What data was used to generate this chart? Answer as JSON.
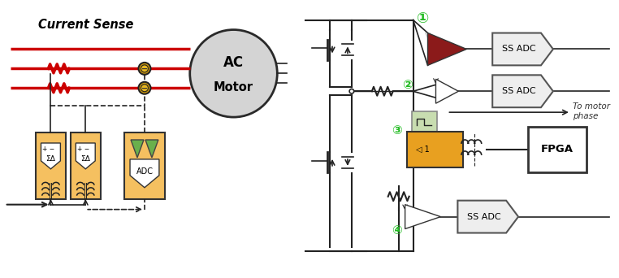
{
  "bg_color": "#ffffff",
  "title_left": "Current Sense",
  "wire_color": "#cc0000",
  "line_color": "#222222",
  "green_color": "#22bb22",
  "dark_red": "#8b1a1a",
  "orange_fill": "#e8a020",
  "light_green_fill": "#c8ddb0",
  "label_ss_adc": "SS ADC",
  "label_fpga": "FPGA",
  "label_to_motor": "To motor\nphase",
  "numbers": [
    "①",
    "②",
    "③",
    "④"
  ],
  "fig_w": 7.62,
  "fig_h": 3.42
}
